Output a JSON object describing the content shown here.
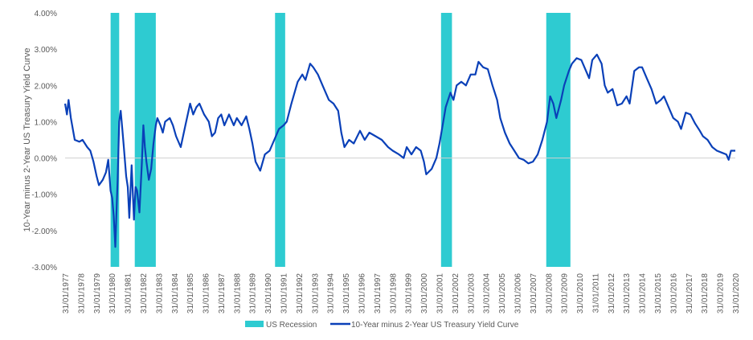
{
  "chart_data": {
    "type": "line",
    "title": "",
    "ylabel": "10-Year minus 2-Year US Treasury Yield Curve",
    "xlabel": "",
    "ylim": [
      -3,
      4
    ],
    "xlim": [
      1977.08,
      2020.08
    ],
    "y_ticks": [
      "-3.00%",
      "-2.00%",
      "-1.00%",
      "0.00%",
      "1.00%",
      "2.00%",
      "3.00%",
      "4.00%"
    ],
    "y_tick_values": [
      -3,
      -2,
      -1,
      0,
      1,
      2,
      3,
      4
    ],
    "x_ticks": [
      "31/01/1977",
      "31/01/1978",
      "31/01/1979",
      "31/01/1980",
      "31/01/1981",
      "31/01/1982",
      "31/01/1983",
      "31/01/1984",
      "31/01/1985",
      "31/01/1986",
      "31/01/1987",
      "31/01/1988",
      "31/01/1989",
      "31/01/1990",
      "31/01/1991",
      "31/01/1992",
      "31/01/1993",
      "31/01/1994",
      "31/01/1995",
      "31/01/1996",
      "31/01/1997",
      "31/01/1998",
      "31/01/1999",
      "31/01/2000",
      "31/01/2001",
      "31/01/2002",
      "31/01/2003",
      "31/01/2004",
      "31/01/2005",
      "31/01/2006",
      "31/01/2007",
      "31/01/2008",
      "31/01/2009",
      "31/01/2010",
      "31/01/2011",
      "31/01/2012",
      "31/01/2013",
      "31/01/2014",
      "31/01/2015",
      "31/01/2016",
      "31/01/2017",
      "31/01/2018",
      "31/01/2019",
      "31/01/2020"
    ],
    "legend": {
      "placement": "bottom",
      "entries": [
        "US Recession",
        "10-Year minus 2-Year US Treasury Yield Curve"
      ]
    },
    "colors": {
      "recession": "#2ECBD1",
      "line": "#0A40B8",
      "zero": "#D0D0D0"
    },
    "recessions": [
      [
        1980.0,
        1980.55
      ],
      [
        1981.55,
        1982.9
      ],
      [
        1990.55,
        1991.2
      ],
      [
        2001.2,
        2001.9
      ],
      [
        2007.95,
        2009.5
      ]
    ],
    "series": [
      {
        "name": "10-Year minus 2-Year US Treasury Yield Curve",
        "points": [
          [
            1977.08,
            1.5
          ],
          [
            1977.2,
            1.2
          ],
          [
            1977.3,
            1.6
          ],
          [
            1977.45,
            1.1
          ],
          [
            1977.7,
            0.5
          ],
          [
            1978.0,
            0.45
          ],
          [
            1978.2,
            0.5
          ],
          [
            1978.5,
            0.3
          ],
          [
            1978.7,
            0.2
          ],
          [
            1978.9,
            -0.1
          ],
          [
            1979.1,
            -0.5
          ],
          [
            1979.25,
            -0.75
          ],
          [
            1979.5,
            -0.6
          ],
          [
            1979.7,
            -0.4
          ],
          [
            1979.85,
            -0.05
          ],
          [
            1980.0,
            -0.9
          ],
          [
            1980.1,
            -1.1
          ],
          [
            1980.2,
            -1.6
          ],
          [
            1980.3,
            -2.45
          ],
          [
            1980.4,
            -1.2
          ],
          [
            1980.45,
            -0.6
          ],
          [
            1980.55,
            1.0
          ],
          [
            1980.65,
            1.3
          ],
          [
            1980.75,
            0.8
          ],
          [
            1980.85,
            0.3
          ],
          [
            1981.0,
            -0.5
          ],
          [
            1981.1,
            -0.8
          ],
          [
            1981.2,
            -1.65
          ],
          [
            1981.35,
            -0.2
          ],
          [
            1981.5,
            -1.7
          ],
          [
            1981.6,
            -0.8
          ],
          [
            1981.7,
            -0.9
          ],
          [
            1981.85,
            -1.5
          ],
          [
            1982.0,
            -0.2
          ],
          [
            1982.1,
            0.9
          ],
          [
            1982.2,
            0.3
          ],
          [
            1982.3,
            -0.1
          ],
          [
            1982.45,
            -0.6
          ],
          [
            1982.6,
            -0.3
          ],
          [
            1982.75,
            0.4
          ],
          [
            1982.9,
            0.9
          ],
          [
            1983.0,
            1.1
          ],
          [
            1983.2,
            0.9
          ],
          [
            1983.35,
            0.7
          ],
          [
            1983.5,
            1.0
          ],
          [
            1983.8,
            1.1
          ],
          [
            1984.0,
            0.9
          ],
          [
            1984.2,
            0.6
          ],
          [
            1984.5,
            0.3
          ],
          [
            1984.8,
            0.9
          ],
          [
            1985.1,
            1.5
          ],
          [
            1985.3,
            1.2
          ],
          [
            1985.5,
            1.4
          ],
          [
            1985.7,
            1.5
          ],
          [
            1986.0,
            1.2
          ],
          [
            1986.3,
            1.0
          ],
          [
            1986.5,
            0.6
          ],
          [
            1986.7,
            0.7
          ],
          [
            1986.9,
            1.1
          ],
          [
            1987.1,
            1.2
          ],
          [
            1987.3,
            0.9
          ],
          [
            1987.6,
            1.2
          ],
          [
            1987.9,
            0.9
          ],
          [
            1988.1,
            1.1
          ],
          [
            1988.4,
            0.9
          ],
          [
            1988.7,
            1.15
          ],
          [
            1988.9,
            0.8
          ],
          [
            1989.1,
            0.4
          ],
          [
            1989.3,
            -0.1
          ],
          [
            1989.6,
            -0.35
          ],
          [
            1989.9,
            0.1
          ],
          [
            1990.2,
            0.2
          ],
          [
            1990.5,
            0.5
          ],
          [
            1990.8,
            0.8
          ],
          [
            1991.1,
            0.9
          ],
          [
            1991.3,
            1.0
          ],
          [
            1991.6,
            1.5
          ],
          [
            1992.0,
            2.1
          ],
          [
            1992.3,
            2.3
          ],
          [
            1992.5,
            2.15
          ],
          [
            1992.8,
            2.6
          ],
          [
            1993.0,
            2.5
          ],
          [
            1993.3,
            2.3
          ],
          [
            1993.6,
            2.0
          ],
          [
            1994.0,
            1.6
          ],
          [
            1994.3,
            1.5
          ],
          [
            1994.6,
            1.3
          ],
          [
            1994.8,
            0.7
          ],
          [
            1995.0,
            0.3
          ],
          [
            1995.3,
            0.5
          ],
          [
            1995.6,
            0.4
          ],
          [
            1996.0,
            0.75
          ],
          [
            1996.3,
            0.5
          ],
          [
            1996.6,
            0.7
          ],
          [
            1997.0,
            0.6
          ],
          [
            1997.4,
            0.5
          ],
          [
            1997.8,
            0.3
          ],
          [
            1998.1,
            0.2
          ],
          [
            1998.5,
            0.1
          ],
          [
            1998.8,
            0.0
          ],
          [
            1999.0,
            0.3
          ],
          [
            1999.3,
            0.1
          ],
          [
            1999.6,
            0.3
          ],
          [
            1999.9,
            0.2
          ],
          [
            2000.1,
            -0.1
          ],
          [
            2000.25,
            -0.45
          ],
          [
            2000.6,
            -0.3
          ],
          [
            2000.9,
            0.0
          ],
          [
            2001.1,
            0.4
          ],
          [
            2001.3,
            0.9
          ],
          [
            2001.5,
            1.4
          ],
          [
            2001.8,
            1.8
          ],
          [
            2002.0,
            1.6
          ],
          [
            2002.2,
            2.0
          ],
          [
            2002.5,
            2.1
          ],
          [
            2002.8,
            2.0
          ],
          [
            2003.1,
            2.3
          ],
          [
            2003.4,
            2.3
          ],
          [
            2003.6,
            2.65
          ],
          [
            2003.9,
            2.5
          ],
          [
            2004.2,
            2.45
          ],
          [
            2004.5,
            2.0
          ],
          [
            2004.8,
            1.6
          ],
          [
            2005.0,
            1.1
          ],
          [
            2005.3,
            0.7
          ],
          [
            2005.6,
            0.4
          ],
          [
            2005.9,
            0.2
          ],
          [
            2006.2,
            0.0
          ],
          [
            2006.5,
            -0.05
          ],
          [
            2006.8,
            -0.15
          ],
          [
            2007.1,
            -0.1
          ],
          [
            2007.4,
            0.1
          ],
          [
            2007.7,
            0.5
          ],
          [
            2008.0,
            1.0
          ],
          [
            2008.2,
            1.7
          ],
          [
            2008.4,
            1.5
          ],
          [
            2008.6,
            1.1
          ],
          [
            2008.9,
            1.6
          ],
          [
            2009.1,
            2.0
          ],
          [
            2009.4,
            2.4
          ],
          [
            2009.6,
            2.6
          ],
          [
            2009.9,
            2.75
          ],
          [
            2010.2,
            2.7
          ],
          [
            2010.5,
            2.4
          ],
          [
            2010.7,
            2.2
          ],
          [
            2010.9,
            2.7
          ],
          [
            2011.2,
            2.85
          ],
          [
            2011.5,
            2.6
          ],
          [
            2011.7,
            2.0
          ],
          [
            2011.9,
            1.8
          ],
          [
            2012.2,
            1.9
          ],
          [
            2012.5,
            1.45
          ],
          [
            2012.8,
            1.5
          ],
          [
            2013.1,
            1.7
          ],
          [
            2013.3,
            1.5
          ],
          [
            2013.6,
            2.4
          ],
          [
            2013.9,
            2.5
          ],
          [
            2014.1,
            2.5
          ],
          [
            2014.4,
            2.2
          ],
          [
            2014.7,
            1.9
          ],
          [
            2015.0,
            1.5
          ],
          [
            2015.3,
            1.6
          ],
          [
            2015.5,
            1.7
          ],
          [
            2015.8,
            1.4
          ],
          [
            2016.1,
            1.1
          ],
          [
            2016.4,
            1.0
          ],
          [
            2016.6,
            0.8
          ],
          [
            2016.9,
            1.25
          ],
          [
            2017.2,
            1.2
          ],
          [
            2017.5,
            0.95
          ],
          [
            2017.8,
            0.75
          ],
          [
            2018.0,
            0.6
          ],
          [
            2018.3,
            0.5
          ],
          [
            2018.6,
            0.3
          ],
          [
            2018.9,
            0.2
          ],
          [
            2019.2,
            0.15
          ],
          [
            2019.5,
            0.1
          ],
          [
            2019.65,
            -0.05
          ],
          [
            2019.8,
            0.2
          ],
          [
            2020.08,
            0.2
          ]
        ]
      }
    ]
  }
}
